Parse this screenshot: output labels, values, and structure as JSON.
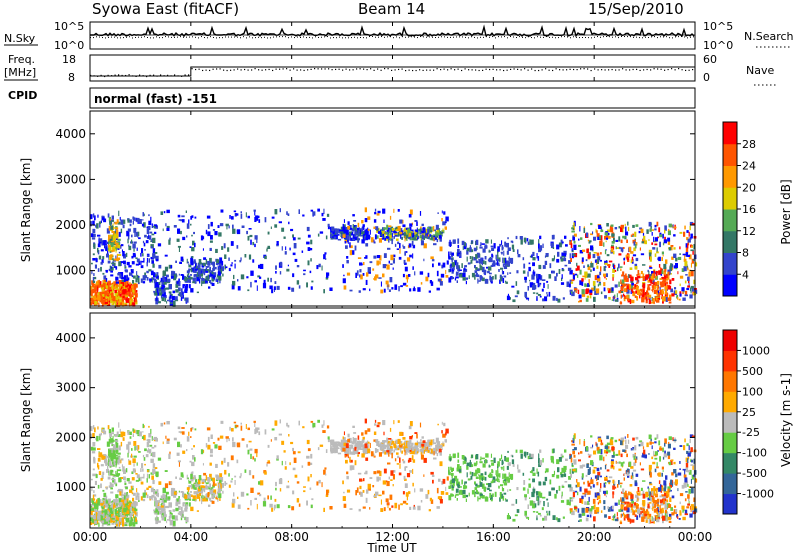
{
  "header": {
    "station": "Syowa East (fitACF)",
    "beam": "Beam 14",
    "date": "15/Sep/2010"
  },
  "noise_panel": {
    "left_label": "N.Sky",
    "right_label": "N.Search",
    "ticks_left": [
      "10^5",
      "10^0"
    ],
    "ticks_right": [
      "10^5",
      "10^0"
    ]
  },
  "freq_panel": {
    "left_label_line1": "Freq.",
    "left_label_line2": "[MHz]",
    "right_label": "Nave",
    "ticks_left": [
      "18",
      "8"
    ],
    "ticks_right": [
      "60",
      "0"
    ]
  },
  "cpid": {
    "label": "CPID",
    "value": "normal (fast) -151"
  },
  "chart_data": [
    {
      "type": "heatmap",
      "title": "",
      "xlabel": "",
      "ylabel": "Slant Range [km]",
      "x_ticks": [
        "00:00",
        "04:00",
        "08:00",
        "12:00",
        "16:00",
        "20:00",
        "00:00"
      ],
      "y_ticks": [
        1000,
        2000,
        3000,
        4000
      ],
      "ylim": [
        180,
        4500
      ],
      "colorbar": {
        "label": "Power [dB]",
        "ticks": [
          4,
          8,
          12,
          16,
          20,
          24,
          28
        ],
        "colors": [
          "#0000ff",
          "#3344cc",
          "#337766",
          "#55aa55",
          "#ddcc00",
          "#ff9900",
          "#ff5500",
          "#ff0000"
        ]
      }
    },
    {
      "type": "heatmap",
      "title": "",
      "xlabel": "Time UT",
      "ylabel": "Slant Range [km]",
      "x_ticks": [
        "00:00",
        "04:00",
        "08:00",
        "12:00",
        "16:00",
        "20:00",
        "00:00"
      ],
      "y_ticks": [
        1000,
        2000,
        3000,
        4000
      ],
      "ylim": [
        180,
        4500
      ],
      "colorbar": {
        "label": "Velocity [m s-1]",
        "ticks": [
          1000,
          500,
          100,
          25,
          -25,
          -100,
          -500,
          -1000
        ],
        "colors": [
          "#2233cc",
          "#336699",
          "#338866",
          "#66cc44",
          "#bbbbbb",
          "#ffaa00",
          "#ff7700",
          "#ff3300",
          "#ee0000"
        ]
      }
    }
  ]
}
